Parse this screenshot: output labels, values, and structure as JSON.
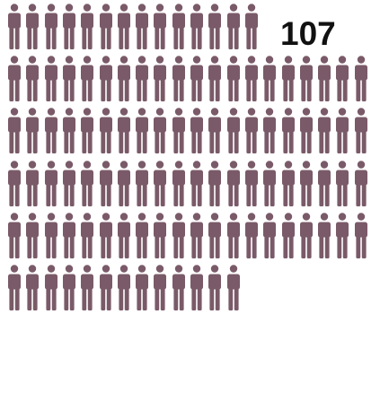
{
  "count_label": "107",
  "icon": "person-icon",
  "figure_count": 107,
  "colors": {
    "figure": "#7a5a68",
    "label": "#111111",
    "background": "#ffffff"
  }
}
